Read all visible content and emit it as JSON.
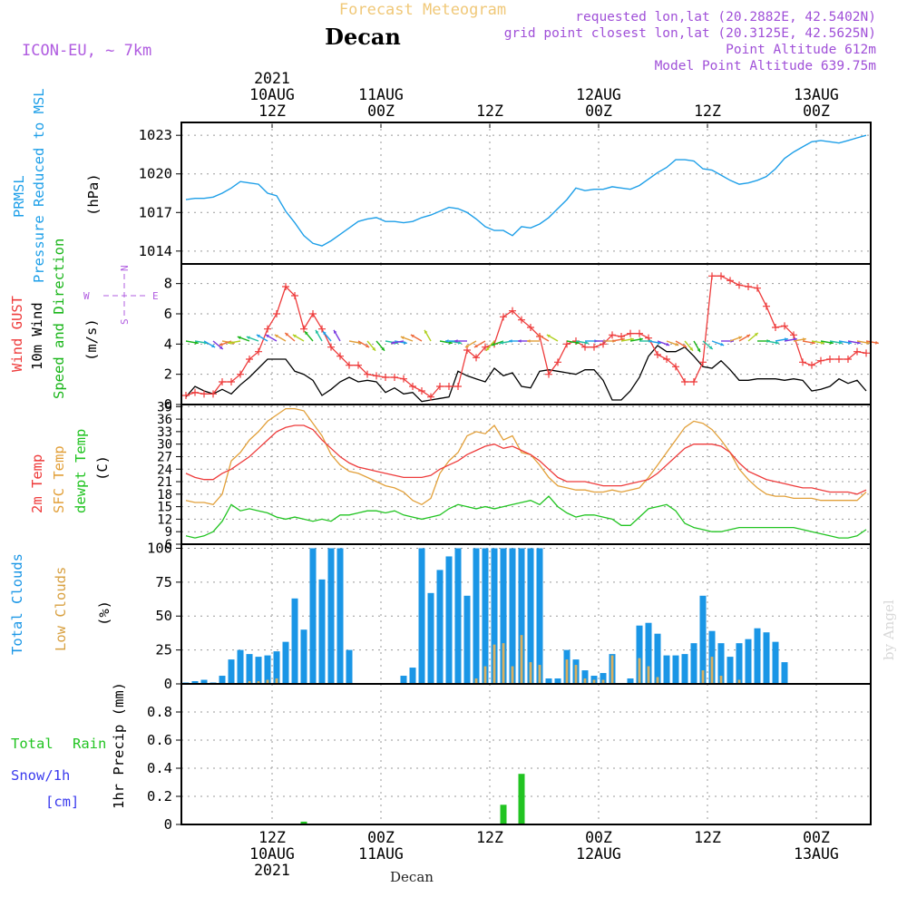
{
  "header": {
    "title": "Forecast Meteogram",
    "location": "Decan",
    "model": "ICON-EU, ~ 7km",
    "requested": "requested lon,lat (20.2882E, 42.5402N)",
    "gridpoint": "grid point closest lon,lat (20.3125E, 42.5625N)",
    "point_alt": "Point Altitude 612m",
    "model_alt": "Model Point Altitude 639.75m",
    "footer_location": "Decan",
    "watermark": "by Angel"
  },
  "time_axis": {
    "start": "2021-08-10 02Z",
    "hours_shown": 76,
    "top_labels": [
      {
        "hour": 10,
        "lines": [
          "2021",
          "10AUG",
          "12Z"
        ]
      },
      {
        "hour": 22,
        "lines": [
          "11AUG",
          "00Z"
        ]
      },
      {
        "hour": 34,
        "lines": [
          "12Z"
        ]
      },
      {
        "hour": 46,
        "lines": [
          "12AUG",
          "00Z"
        ]
      },
      {
        "hour": 58,
        "lines": [
          "12Z"
        ]
      },
      {
        "hour": 70,
        "lines": [
          "13AUG",
          "00Z"
        ]
      }
    ],
    "bottom_labels": [
      {
        "hour": 10,
        "lines": [
          "12Z",
          "10AUG",
          "2021"
        ]
      },
      {
        "hour": 22,
        "lines": [
          "00Z",
          "11AUG"
        ]
      },
      {
        "hour": 34,
        "lines": [
          "12Z"
        ]
      },
      {
        "hour": 46,
        "lines": [
          "00Z",
          "12AUG"
        ]
      },
      {
        "hour": 58,
        "lines": [
          "12Z"
        ]
      },
      {
        "hour": 70,
        "lines": [
          "00Z",
          "13AUG"
        ]
      }
    ]
  },
  "colors": {
    "pressure": "#1e9fe8",
    "gust": "#ee3b3b",
    "wind10m": "#000000",
    "direction": "#19b519",
    "temp2m": "#ee3b3b",
    "sfc": "#e2a03a",
    "dewpt": "#22c422",
    "total_clouds": "#1a96e6",
    "low_clouds": "#d8b060",
    "rain": "#22c422",
    "snow": "#3a3aee",
    "compass": "#b05ce0",
    "title": "#f0c878",
    "meta": "#a050d8"
  },
  "panel_labels": {
    "pressure": [
      "PRMSL",
      "Pressure Reduced to MSL",
      "(hPa)"
    ],
    "wind": [
      "Wind GUST",
      "10m Wind",
      "Speed and Direction",
      "(m/s)"
    ],
    "compass": {
      "n": "N",
      "s": "S",
      "e": "E",
      "w": "W"
    },
    "temp": [
      "2m Temp",
      "SFC Temp",
      "dewpt Temp",
      "(C)"
    ],
    "clouds": [
      "Total Clouds",
      "Low Clouds",
      "(%)"
    ],
    "precip": [
      "Total",
      "Rain",
      "Snow/1h",
      "[cm]",
      "1hr Precip (mm)"
    ]
  },
  "chart_data": [
    {
      "type": "line",
      "name": "pressure",
      "ylabel": "(hPa)",
      "ylim": [
        1013,
        1024
      ],
      "yticks": [
        1014,
        1017,
        1020,
        1023
      ],
      "x_hours": [
        0,
        1,
        2,
        3,
        4,
        5,
        6,
        7,
        8,
        9,
        10,
        11,
        12,
        13,
        14,
        15,
        16,
        17,
        18,
        19,
        20,
        21,
        22,
        23,
        24,
        25,
        26,
        27,
        28,
        29,
        30,
        31,
        32,
        33,
        34,
        35,
        36,
        37,
        38,
        39,
        40,
        41,
        42,
        43,
        44,
        45,
        46,
        47,
        48,
        49,
        50,
        51,
        52,
        53,
        54,
        55,
        56,
        57,
        58,
        59,
        60,
        61,
        62,
        63,
        64,
        65,
        66,
        67,
        68,
        69,
        70,
        71,
        72,
        73,
        74,
        75
      ],
      "values": [
        1018.0,
        1018.1,
        1018.1,
        1018.2,
        1018.5,
        1018.9,
        1019.4,
        1019.3,
        1019.2,
        1018.5,
        1018.3,
        1017.1,
        1016.2,
        1015.2,
        1014.6,
        1014.4,
        1014.8,
        1015.3,
        1015.8,
        1016.3,
        1016.5,
        1016.6,
        1016.3,
        1016.3,
        1016.2,
        1016.3,
        1016.6,
        1016.8,
        1017.1,
        1017.4,
        1017.3,
        1017.0,
        1016.5,
        1015.9,
        1015.6,
        1015.6,
        1015.2,
        1015.9,
        1015.8,
        1016.1,
        1016.6,
        1017.3,
        1018.0,
        1018.9,
        1018.7,
        1018.8,
        1018.8,
        1019.0,
        1018.9,
        1018.8,
        1019.1,
        1019.6,
        1020.1,
        1020.5,
        1021.1,
        1021.1,
        1021.0,
        1020.4,
        1020.3,
        1019.9,
        1019.5,
        1019.2,
        1019.3,
        1019.5,
        1019.8,
        1020.4,
        1021.2,
        1021.7,
        1022.1,
        1022.5,
        1022.6,
        1022.5,
        1022.4,
        1022.6,
        1022.8,
        1023.0
      ]
    },
    {
      "type": "line",
      "name": "wind",
      "ylabel": "(m/s)",
      "ylim": [
        0,
        9.3
      ],
      "yticks": [
        0,
        2,
        4,
        6,
        8
      ],
      "x_hours": [
        0,
        1,
        2,
        3,
        4,
        5,
        6,
        7,
        8,
        9,
        10,
        11,
        12,
        13,
        14,
        15,
        16,
        17,
        18,
        19,
        20,
        21,
        22,
        23,
        24,
        25,
        26,
        27,
        28,
        29,
        30,
        31,
        32,
        33,
        34,
        35,
        36,
        37,
        38,
        39,
        40,
        41,
        42,
        43,
        44,
        45,
        46,
        47,
        48,
        49,
        50,
        51,
        52,
        53,
        54,
        55,
        56,
        57,
        58,
        59,
        60,
        61,
        62,
        63,
        64,
        65,
        66,
        67,
        68,
        69,
        70,
        71,
        72,
        73,
        74,
        75
      ],
      "gust": [
        0.6,
        0.8,
        0.7,
        0.7,
        1.5,
        1.5,
        2.0,
        3.0,
        3.5,
        5.0,
        6.0,
        7.8,
        7.2,
        5.0,
        6.0,
        5.0,
        3.8,
        3.2,
        2.6,
        2.6,
        2.0,
        1.9,
        1.8,
        1.8,
        1.7,
        1.2,
        0.9,
        0.5,
        1.2,
        1.2,
        1.2,
        3.6,
        3.1,
        3.8,
        4.0,
        5.8,
        6.2,
        5.6,
        5.1,
        4.5,
        2.0,
        2.8,
        4.0,
        4.2,
        3.8,
        3.8,
        4.0,
        4.6,
        4.5,
        4.7,
        4.7,
        4.4,
        3.3,
        3.0,
        2.5,
        1.5,
        1.5,
        2.8,
        8.5,
        8.5,
        8.2,
        7.9,
        7.8,
        7.7,
        6.5,
        5.1,
        5.2,
        4.6,
        2.8,
        2.6,
        2.9,
        3.0,
        3.0,
        3.0,
        3.5,
        3.4
      ],
      "wind10m": [
        0.5,
        1.2,
        0.9,
        0.7,
        1.0,
        0.7,
        1.3,
        1.8,
        2.4,
        3.0,
        3.0,
        3.0,
        2.2,
        2.0,
        1.6,
        0.6,
        1.0,
        1.5,
        1.8,
        1.5,
        1.6,
        1.5,
        0.8,
        1.1,
        0.7,
        0.8,
        0.2,
        0.3,
        0.4,
        0.5,
        2.2,
        1.9,
        1.7,
        1.5,
        2.4,
        1.9,
        2.1,
        1.2,
        1.1,
        2.2,
        2.3,
        2.2,
        2.1,
        2.0,
        2.3,
        2.3,
        1.6,
        0.3,
        0.3,
        0.9,
        1.8,
        3.2,
        3.9,
        3.5,
        3.5,
        3.8,
        3.2,
        2.5,
        2.4,
        2.9,
        2.3,
        1.6,
        1.6,
        1.7,
        1.7,
        1.7,
        1.6,
        1.7,
        1.6,
        0.9,
        1.0,
        1.2,
        1.7,
        1.4,
        1.6,
        0.9
      ],
      "direction_deg": [
        100,
        100,
        120,
        130,
        100,
        250,
        260,
        290,
        290,
        300,
        300,
        300,
        310,
        300,
        320,
        330,
        320,
        330,
        100,
        120,
        140,
        140,
        100,
        100,
        260,
        290,
        300,
        330,
        100,
        100,
        270,
        270,
        240,
        240,
        220,
        250,
        260,
        270,
        270,
        270,
        300,
        300,
        100,
        100,
        90,
        90,
        90,
        80,
        80,
        80,
        90,
        100,
        110,
        110,
        120,
        140,
        150,
        130,
        110,
        90,
        70,
        60,
        50,
        90,
        100,
        80,
        80,
        80,
        100,
        100,
        100,
        100,
        100,
        100,
        100,
        100
      ]
    },
    {
      "type": "line",
      "name": "temperature",
      "ylabel": "(C)",
      "ylim": [
        6,
        39.5
      ],
      "yticks": [
        6,
        9,
        12,
        15,
        18,
        21,
        24,
        27,
        30,
        33,
        36,
        39
      ],
      "x_hours": [
        0,
        1,
        2,
        3,
        4,
        5,
        6,
        7,
        8,
        9,
        10,
        11,
        12,
        13,
        14,
        15,
        16,
        17,
        18,
        19,
        20,
        21,
        22,
        23,
        24,
        25,
        26,
        27,
        28,
        29,
        30,
        31,
        32,
        33,
        34,
        35,
        36,
        37,
        38,
        39,
        40,
        41,
        42,
        43,
        44,
        45,
        46,
        47,
        48,
        49,
        50,
        51,
        52,
        53,
        54,
        55,
        56,
        57,
        58,
        59,
        60,
        61,
        62,
        63,
        64,
        65,
        66,
        67,
        68,
        69,
        70,
        71,
        72,
        73,
        74,
        75
      ],
      "t2m": [
        23,
        22,
        21.5,
        21.5,
        23,
        24,
        25.5,
        27,
        29,
        31,
        33,
        34,
        34.5,
        34.5,
        33.5,
        31,
        29,
        27,
        25.5,
        24.5,
        24,
        23.5,
        23,
        22.5,
        22,
        22,
        22,
        22.5,
        24,
        25,
        26,
        27.5,
        28.5,
        29.5,
        30,
        29,
        29.5,
        28.5,
        27.5,
        26,
        24,
        22,
        21,
        21,
        21,
        20.5,
        20,
        20,
        20,
        20.5,
        21,
        21.5,
        23,
        25,
        27,
        29,
        30,
        30,
        30,
        29.5,
        28,
        25.5,
        23.5,
        22.5,
        21.5,
        21,
        20.5,
        20,
        19.5,
        19.5,
        19,
        18.5,
        18.5,
        18.5,
        18,
        19
      ],
      "sfc": [
        16.5,
        16,
        16,
        15.5,
        18,
        26,
        28,
        31,
        33,
        35.5,
        37,
        38.5,
        38.5,
        38,
        35,
        32,
        27.5,
        25,
        23.5,
        23,
        22,
        21,
        20,
        19.5,
        18.5,
        16.5,
        15.5,
        17,
        23,
        26,
        28,
        32,
        33,
        32.5,
        34.5,
        31,
        32,
        28,
        27.5,
        25,
        22,
        20,
        19.5,
        19,
        19,
        18.5,
        18.5,
        19,
        18.5,
        19,
        19.5,
        22,
        25,
        28,
        31,
        34,
        35.5,
        35,
        33.5,
        31,
        28,
        24,
        21.5,
        19.5,
        18,
        17.5,
        17.5,
        17,
        17,
        17,
        16.5,
        16.5,
        16.5,
        16.5,
        16.5,
        18.5
      ],
      "dewpt": [
        8,
        7.5,
        8,
        9,
        11.5,
        15.5,
        14,
        14.5,
        14,
        13.5,
        12.5,
        12,
        12.5,
        12,
        11.5,
        12,
        11.5,
        13,
        13,
        13.5,
        14,
        14,
        13.5,
        14,
        13,
        12.5,
        12,
        12.5,
        13,
        14.5,
        15.5,
        15,
        14.5,
        15,
        14.5,
        15,
        15.5,
        16,
        16.5,
        15.5,
        17.5,
        15,
        13.5,
        12.5,
        13,
        13,
        12.5,
        12,
        10.5,
        10.5,
        12.5,
        14.5,
        15,
        15.5,
        14,
        11,
        10,
        9.5,
        9,
        9,
        9.5,
        10,
        10,
        10,
        10,
        10,
        10,
        10,
        9.5,
        9,
        8.5,
        8,
        7.5,
        7.5,
        8,
        9.5
      ]
    },
    {
      "type": "bar",
      "name": "clouds",
      "ylabel": "(%)",
      "ylim": [
        0,
        103
      ],
      "yticks": [
        0,
        25,
        50,
        75,
        100
      ],
      "x_hours": [
        0,
        1,
        2,
        3,
        4,
        5,
        6,
        7,
        8,
        9,
        10,
        11,
        12,
        13,
        14,
        15,
        16,
        17,
        18,
        19,
        20,
        21,
        22,
        23,
        24,
        25,
        26,
        27,
        28,
        29,
        30,
        31,
        32,
        33,
        34,
        35,
        36,
        37,
        38,
        39,
        40,
        41,
        42,
        43,
        44,
        45,
        46,
        47,
        48,
        49,
        50,
        51,
        52,
        53,
        54,
        55,
        56,
        57,
        58,
        59,
        60,
        61,
        62,
        63,
        64,
        65,
        66,
        67,
        68,
        69,
        70,
        71,
        72,
        73,
        74,
        75
      ],
      "total": [
        1,
        2,
        3,
        1,
        6,
        18,
        25,
        22,
        20,
        21,
        24,
        31,
        63,
        40,
        100,
        77,
        100,
        100,
        25,
        0,
        0,
        0,
        0,
        0,
        6,
        12,
        100,
        67,
        84,
        94,
        100,
        65,
        100,
        100,
        100,
        100,
        100,
        100,
        100,
        100,
        4,
        4,
        25,
        18,
        10,
        6,
        8,
        22,
        0,
        4,
        43,
        45,
        37,
        21,
        21,
        22,
        30,
        65,
        39,
        30,
        20,
        30,
        33,
        41,
        38,
        31,
        16,
        0,
        0,
        0,
        0,
        0,
        0,
        0,
        0,
        0
      ],
      "low": [
        0,
        0,
        0,
        0,
        0,
        0,
        0,
        2,
        2,
        3,
        4,
        0,
        0,
        0,
        0,
        0,
        0,
        0,
        0,
        0,
        0,
        0,
        0,
        0,
        0,
        0,
        0,
        0,
        0,
        0,
        0,
        0,
        4,
        13,
        29,
        30,
        13,
        36,
        16,
        14,
        0,
        0,
        18,
        14,
        4,
        3,
        3,
        21,
        0,
        0,
        19,
        13,
        5,
        0,
        0,
        0,
        0,
        10,
        20,
        6,
        0,
        3,
        0,
        0,
        0,
        0,
        0,
        0,
        0,
        0,
        0,
        0,
        0,
        0,
        0,
        0
      ]
    },
    {
      "type": "bar",
      "name": "precip",
      "ylabel": "1hr Precip (mm)",
      "ylim": [
        0,
        1.0
      ],
      "yticks": [
        0,
        0.2,
        0.4,
        0.6,
        0.8
      ],
      "ytick_labels": [
        "0",
        "0.2",
        "0.4",
        "0.6",
        "0.8"
      ],
      "bars": [
        {
          "hour": 13,
          "value": 0.02
        },
        {
          "hour": 35,
          "value": 0.14
        },
        {
          "hour": 37,
          "value": 0.36
        }
      ]
    }
  ]
}
